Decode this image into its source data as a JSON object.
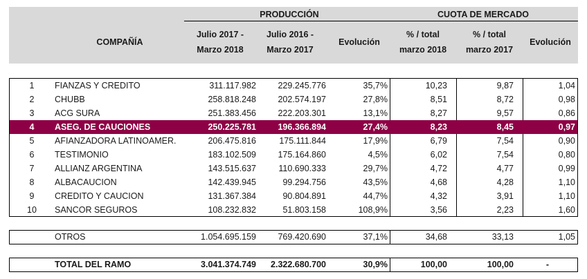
{
  "header": {
    "company": "COMPAÑÍA",
    "produccion_group": "PRODUCCIÓN",
    "cuota_group": "CUOTA DE MERCADO",
    "col_p18_line1": "Julio 2017 -",
    "col_p18_line2": "Marzo 2018",
    "col_p17_line1": "Julio 2016 -",
    "col_p17_line2": "Marzo 2017",
    "col_evo": "Evolución",
    "col_m18_line1": "% / total",
    "col_m18_line2": "marzo 2018",
    "col_m17_line1": "% / total",
    "col_m17_line2": "marzo  2017",
    "col_mev": "Evolución"
  },
  "colors": {
    "highlight": "#8e0046",
    "header_bg": "#d9d9d9"
  },
  "rows": [
    {
      "rank": "1",
      "name": "FIANZAS Y CREDITO",
      "p18": "311.117.982",
      "p17": "229.245.776",
      "evo": "35,7%",
      "m18": "10,23",
      "m17": "9,87",
      "mev": "1,04"
    },
    {
      "rank": "2",
      "name": "CHUBB",
      "p18": "258.818.248",
      "p17": "202.574.197",
      "evo": "27,8%",
      "m18": "8,51",
      "m17": "8,72",
      "mev": "0,98"
    },
    {
      "rank": "3",
      "name": "ACG SURA",
      "p18": "251.383.456",
      "p17": "222.203.301",
      "evo": "13,1%",
      "m18": "8,27",
      "m17": "9,57",
      "mev": "0,86"
    },
    {
      "rank": "4",
      "name": "ASEG. DE CAUCIONES",
      "p18": "250.225.781",
      "p17": "196.366.894",
      "evo": "27,4%",
      "m18": "8,23",
      "m17": "8,45",
      "mev": "0,97",
      "highlight": true
    },
    {
      "rank": "5",
      "name": "AFIANZADORA LATINOAMER.",
      "p18": "206.475.816",
      "p17": "175.111.844",
      "evo": "17,9%",
      "m18": "6,79",
      "m17": "7,54",
      "mev": "0,90"
    },
    {
      "rank": "6",
      "name": "TESTIMONIO",
      "p18": "183.102.509",
      "p17": "175.164.860",
      "evo": "4,5%",
      "m18": "6,02",
      "m17": "7,54",
      "mev": "0,80"
    },
    {
      "rank": "7",
      "name": "ALLIANZ ARGENTINA",
      "p18": "143.515.637",
      "p17": "110.690.333",
      "evo": "29,7%",
      "m18": "4,72",
      "m17": "4,77",
      "mev": "0,99"
    },
    {
      "rank": "8",
      "name": "ALBACAUCION",
      "p18": "142.439.945",
      "p17": "99.294.756",
      "evo": "43,5%",
      "m18": "4,68",
      "m17": "4,28",
      "mev": "1,10"
    },
    {
      "rank": "9",
      "name": "CREDITO Y CAUCION",
      "p18": "131.367.384",
      "p17": "90.804.891",
      "evo": "44,7%",
      "m18": "4,32",
      "m17": "3,91",
      "mev": "1,10"
    },
    {
      "rank": "10",
      "name": "SANCOR SEGUROS",
      "p18": "108.232.832",
      "p17": "51.803.158",
      "evo": "108,9%",
      "m18": "3,56",
      "m17": "2,23",
      "mev": "1,60"
    }
  ],
  "otros": {
    "name": "OTROS",
    "p18": "1.054.695.159",
    "p17": "769.420.690",
    "evo": "37,1%",
    "m18": "34,68",
    "m17": "33,13",
    "mev": "1,05"
  },
  "total": {
    "name": "TOTAL DEL RAMO",
    "p18": "3.041.374.749",
    "p17": "2.322.680.700",
    "evo": "30,9%",
    "m18": "100,00",
    "m17": "100,00",
    "mev": "-"
  }
}
